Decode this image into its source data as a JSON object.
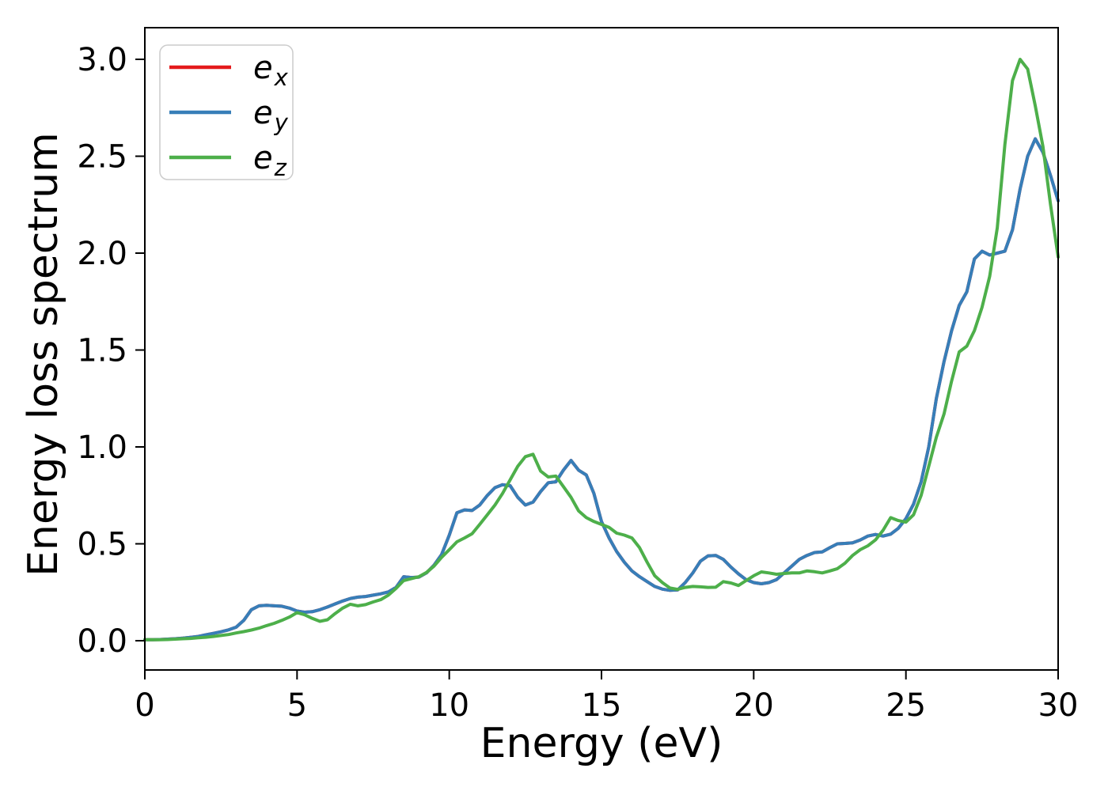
{
  "chart_data": {
    "type": "line",
    "title": "",
    "xlabel": "Energy (eV)",
    "ylabel": "Energy loss spectrum",
    "xlim": [
      0,
      30
    ],
    "ylim": [
      -0.15,
      3.16
    ],
    "grid": false,
    "xticks": [
      "0",
      "5",
      "10",
      "15",
      "20",
      "25",
      "30"
    ],
    "xtick_values": [
      0,
      5,
      10,
      15,
      20,
      25,
      30
    ],
    "yticks": [
      "0.0",
      "0.5",
      "1.0",
      "1.5",
      "2.0",
      "2.5",
      "3.0"
    ],
    "ytick_values": [
      0.0,
      0.5,
      1.0,
      1.5,
      2.0,
      2.5,
      3.0
    ],
    "legend": {
      "position": "upper-left",
      "entries": [
        {
          "label": "e_x",
          "color": "#e41a1c"
        },
        {
          "label": "e_y",
          "color": "#377eb8"
        },
        {
          "label": "e_z",
          "color": "#4daf4a"
        }
      ]
    },
    "x": [
      0,
      0.25,
      0.5,
      0.75,
      1,
      1.25,
      1.5,
      1.75,
      2,
      2.25,
      2.5,
      2.75,
      3,
      3.25,
      3.5,
      3.75,
      4,
      4.25,
      4.5,
      4.75,
      5,
      5.25,
      5.5,
      5.75,
      6,
      6.25,
      6.5,
      6.75,
      7,
      7.25,
      7.5,
      7.75,
      8,
      8.25,
      8.5,
      8.75,
      9,
      9.25,
      9.5,
      9.75,
      10,
      10.25,
      10.5,
      10.75,
      11,
      11.25,
      11.5,
      11.75,
      12,
      12.25,
      12.5,
      12.75,
      13,
      13.25,
      13.5,
      13.75,
      14,
      14.25,
      14.5,
      14.75,
      15,
      15.25,
      15.5,
      15.75,
      16,
      16.25,
      16.5,
      16.75,
      17,
      17.25,
      17.5,
      17.75,
      18,
      18.25,
      18.5,
      18.75,
      19,
      19.25,
      19.5,
      19.75,
      20,
      20.25,
      20.5,
      20.75,
      21,
      21.25,
      21.5,
      21.75,
      22,
      22.25,
      22.5,
      22.75,
      23,
      23.25,
      23.5,
      23.75,
      24,
      24.25,
      24.5,
      24.75,
      25,
      25.25,
      25.5,
      25.75,
      26,
      26.25,
      26.5,
      26.75,
      27,
      27.25,
      27.5,
      27.75,
      28,
      28.25,
      28.5,
      28.75,
      29,
      29.25,
      29.5,
      29.75,
      30
    ],
    "series": [
      {
        "name": "e_x",
        "color": "#e41a1c",
        "values": [
          0.005,
          0.005,
          0.006,
          0.008,
          0.01,
          0.013,
          0.017,
          0.022,
          0.03,
          0.038,
          0.046,
          0.056,
          0.07,
          0.105,
          0.16,
          0.18,
          0.183,
          0.18,
          0.178,
          0.168,
          0.153,
          0.147,
          0.15,
          0.16,
          0.174,
          0.19,
          0.205,
          0.218,
          0.225,
          0.228,
          0.235,
          0.242,
          0.252,
          0.275,
          0.33,
          0.326,
          0.328,
          0.35,
          0.39,
          0.445,
          0.545,
          0.66,
          0.675,
          0.672,
          0.7,
          0.75,
          0.79,
          0.805,
          0.8,
          0.74,
          0.7,
          0.715,
          0.77,
          0.815,
          0.82,
          0.88,
          0.93,
          0.88,
          0.855,
          0.76,
          0.615,
          0.53,
          0.46,
          0.405,
          0.36,
          0.33,
          0.305,
          0.28,
          0.266,
          0.26,
          0.262,
          0.3,
          0.35,
          0.41,
          0.438,
          0.44,
          0.42,
          0.38,
          0.345,
          0.315,
          0.3,
          0.294,
          0.3,
          0.315,
          0.35,
          0.385,
          0.42,
          0.44,
          0.455,
          0.458,
          0.48,
          0.5,
          0.502,
          0.505,
          0.52,
          0.54,
          0.548,
          0.54,
          0.55,
          0.58,
          0.63,
          0.705,
          0.82,
          1.0,
          1.25,
          1.44,
          1.6,
          1.73,
          1.8,
          1.97,
          2.01,
          1.99,
          2.0,
          2.01,
          2.12,
          2.33,
          2.5,
          2.59,
          2.52,
          2.4,
          2.27
        ]
      },
      {
        "name": "e_y",
        "color": "#377eb8",
        "values": [
          0.005,
          0.005,
          0.006,
          0.008,
          0.01,
          0.013,
          0.017,
          0.022,
          0.03,
          0.038,
          0.046,
          0.056,
          0.07,
          0.105,
          0.16,
          0.18,
          0.183,
          0.18,
          0.178,
          0.168,
          0.153,
          0.147,
          0.15,
          0.16,
          0.174,
          0.19,
          0.205,
          0.218,
          0.225,
          0.228,
          0.235,
          0.242,
          0.252,
          0.275,
          0.33,
          0.326,
          0.328,
          0.35,
          0.39,
          0.445,
          0.545,
          0.66,
          0.675,
          0.672,
          0.7,
          0.75,
          0.79,
          0.805,
          0.8,
          0.74,
          0.7,
          0.715,
          0.77,
          0.815,
          0.82,
          0.88,
          0.93,
          0.88,
          0.855,
          0.76,
          0.615,
          0.53,
          0.46,
          0.405,
          0.36,
          0.33,
          0.305,
          0.28,
          0.266,
          0.26,
          0.262,
          0.3,
          0.35,
          0.41,
          0.438,
          0.44,
          0.42,
          0.38,
          0.345,
          0.315,
          0.3,
          0.294,
          0.3,
          0.315,
          0.35,
          0.385,
          0.42,
          0.44,
          0.455,
          0.458,
          0.48,
          0.5,
          0.502,
          0.505,
          0.52,
          0.54,
          0.548,
          0.54,
          0.55,
          0.58,
          0.63,
          0.705,
          0.82,
          1.0,
          1.25,
          1.44,
          1.6,
          1.73,
          1.8,
          1.97,
          2.01,
          1.99,
          2.0,
          2.01,
          2.12,
          2.33,
          2.5,
          2.59,
          2.52,
          2.4,
          2.27
        ]
      },
      {
        "name": "e_z",
        "color": "#4daf4a",
        "values": [
          0.005,
          0.005,
          0.005,
          0.006,
          0.008,
          0.01,
          0.012,
          0.015,
          0.018,
          0.022,
          0.027,
          0.032,
          0.04,
          0.047,
          0.055,
          0.065,
          0.078,
          0.09,
          0.105,
          0.122,
          0.145,
          0.134,
          0.115,
          0.1,
          0.108,
          0.14,
          0.168,
          0.188,
          0.18,
          0.186,
          0.2,
          0.212,
          0.235,
          0.27,
          0.31,
          0.32,
          0.33,
          0.352,
          0.385,
          0.43,
          0.47,
          0.51,
          0.53,
          0.552,
          0.6,
          0.65,
          0.7,
          0.76,
          0.83,
          0.9,
          0.95,
          0.962,
          0.875,
          0.845,
          0.85,
          0.795,
          0.74,
          0.67,
          0.635,
          0.615,
          0.6,
          0.585,
          0.555,
          0.545,
          0.53,
          0.48,
          0.405,
          0.335,
          0.3,
          0.272,
          0.265,
          0.275,
          0.28,
          0.278,
          0.275,
          0.276,
          0.305,
          0.298,
          0.285,
          0.31,
          0.335,
          0.355,
          0.35,
          0.343,
          0.347,
          0.35,
          0.35,
          0.36,
          0.356,
          0.35,
          0.36,
          0.372,
          0.4,
          0.44,
          0.47,
          0.49,
          0.52,
          0.57,
          0.635,
          0.62,
          0.612,
          0.65,
          0.75,
          0.9,
          1.05,
          1.17,
          1.34,
          1.49,
          1.52,
          1.6,
          1.72,
          1.88,
          2.13,
          2.56,
          2.89,
          3.0,
          2.95,
          2.76,
          2.55,
          2.25,
          1.98
        ]
      }
    ]
  }
}
